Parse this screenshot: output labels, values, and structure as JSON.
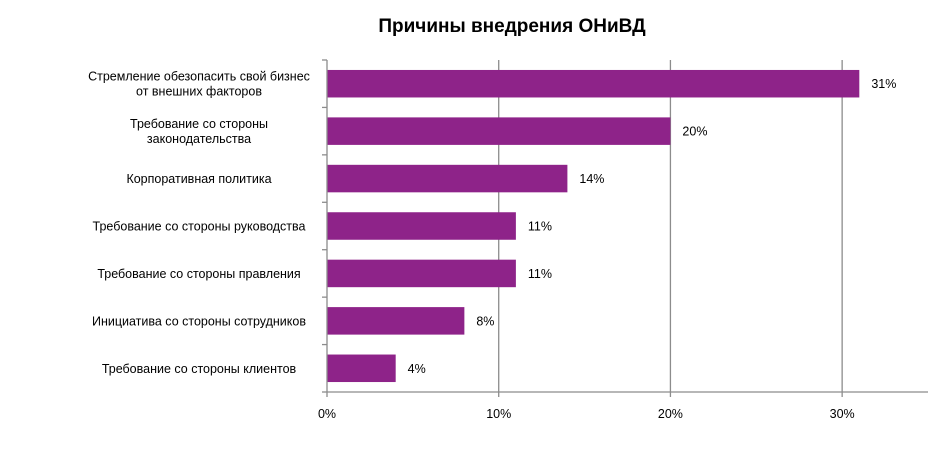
{
  "chart_data": {
    "type": "bar",
    "orientation": "horizontal",
    "title": "Причины внедрения ОНиВД",
    "categories": [
      [
        "Стремление обезопасить свой бизнес",
        "от внешних факторов"
      ],
      [
        "Требование со стороны",
        "законодательства"
      ],
      [
        "Корпоративная политика"
      ],
      [
        "Требование со стороны руководства"
      ],
      [
        "Требование со стороны правления"
      ],
      [
        "Инициатива со стороны сотрудников"
      ],
      [
        "Требование со стороны клиентов"
      ]
    ],
    "values": [
      31,
      20,
      14,
      11,
      11,
      8,
      4
    ],
    "value_labels": [
      "31%",
      "20%",
      "14%",
      "11%",
      "11%",
      "8%",
      "4%"
    ],
    "xlim": [
      0,
      35
    ],
    "xticks": [
      0,
      10,
      20,
      30
    ],
    "xtick_labels": [
      "0%",
      "10%",
      "20%",
      "30%"
    ],
    "grid": true,
    "bar_color": "#8E2389",
    "grid_color": "#8c8c8c"
  }
}
